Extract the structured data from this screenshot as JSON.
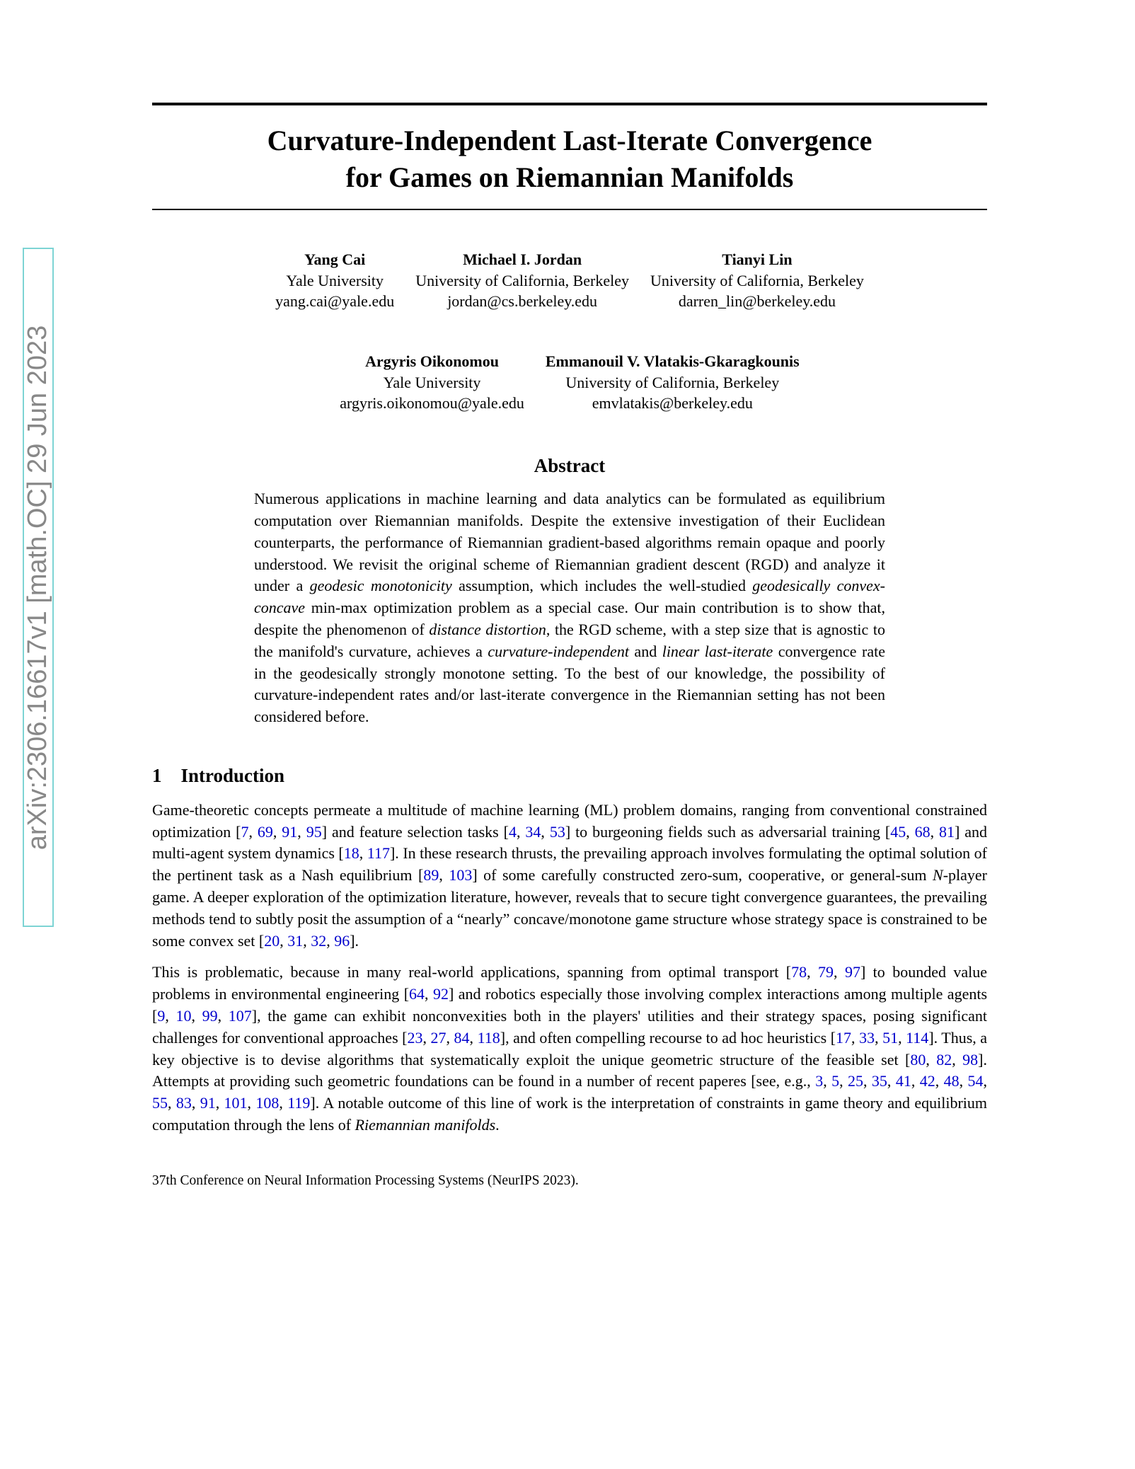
{
  "arxiv_id": "arXiv:2306.16617v1  [math.OC]  29 Jun 2023",
  "title_line1": "Curvature-Independent Last-Iterate Convergence",
  "title_line2": "for Games on Riemannian Manifolds",
  "authors_row1": [
    {
      "name": "Yang Cai",
      "affiliation": "Yale University",
      "email": "yang.cai@yale.edu"
    },
    {
      "name": "Michael I. Jordan",
      "affiliation": "University of California, Berkeley",
      "email": "jordan@cs.berkeley.edu"
    },
    {
      "name": "Tianyi Lin",
      "affiliation": "University of California, Berkeley",
      "email": "darren_lin@berkeley.edu"
    }
  ],
  "authors_row2": [
    {
      "name": "Argyris Oikonomou",
      "affiliation": "Yale University",
      "email": "argyris.oikonomou@yale.edu"
    },
    {
      "name": "Emmanouil V. Vlatakis-Gkaragkounis",
      "affiliation": "University of California, Berkeley",
      "email": "emvlatakis@berkeley.edu"
    }
  ],
  "abstract_heading": "Abstract",
  "abstract_text": "Numerous applications in machine learning and data analytics can be formulated as equilibrium computation over Riemannian manifolds. Despite the extensive investigation of their Euclidean counterparts, the performance of Riemannian gradient-based algorithms remain opaque and poorly understood. We revisit the original scheme of Riemannian gradient descent (RGD) and analyze it under a <em>geodesic monotonicity</em> assumption, which includes the well-studied <em>geodesically convex-concave</em> min-max optimization problem as a special case. Our main contribution is to show that, despite the phenomenon of <em>distance distortion</em>, the RGD scheme, with a step size that is agnostic to the manifold's curvature, achieves a <em>curvature-independent</em> and <em>linear last-iterate</em> convergence rate in the geodesically strongly monotone setting. To the best of our knowledge, the possibility of curvature-independent rates and/or last-iterate convergence in the Riemannian setting has not been considered before.",
  "section1_heading": "1 Introduction",
  "para1": {
    "seg1": "Game-theoretic concepts permeate a multitude of machine learning (ML) problem domains, ranging from conventional constrained optimization [",
    "c1": "7",
    "c1b": "69",
    "c1c": "91",
    "c1d": "95",
    "seg2": "] and feature selection tasks [",
    "c2": "4",
    "c2b": "34",
    "c2c": "53",
    "seg3": "] to burgeoning fields such as adversarial training [",
    "c3": "45",
    "c3b": "68",
    "c3c": "81",
    "seg4": "] and multi-agent system dynamics [",
    "c4": "18",
    "c4b": "117",
    "seg5": "]. In these research thrusts, the prevailing approach involves formulating the optimal solution of the pertinent task as a Nash equilibrium [",
    "c5": "89",
    "c5b": "103",
    "seg6": "] of some carefully constructed zero-sum, cooperative, or general-sum <em>N</em>-player game. A deeper exploration of the optimization literature, however, reveals that to secure tight convergence guarantees, the prevailing methods tend to subtly posit the assumption of a “nearly” concave/monotone game structure whose strategy space is constrained to be some convex set [",
    "c6": "20",
    "c6b": "31",
    "c6c": "32",
    "c6d": "96",
    "seg7": "]."
  },
  "para2": {
    "seg1": "This is problematic, because in many real-world applications, spanning from optimal transport [",
    "c1": "78",
    "c1b": "79",
    "c1c": "97",
    "seg2": "] to bounded value problems in environmental engineering [",
    "c2": "64",
    "c2b": "92",
    "seg3": "] and robotics especially those involving complex interactions among multiple agents [",
    "c3": "9",
    "c3b": "10",
    "c3c": "99",
    "c3d": "107",
    "seg4": "], the game can exhibit nonconvexities both in the players' utilities and their strategy spaces, posing significant challenges for conventional approaches [",
    "c4": "23",
    "c4b": "27",
    "c4c": "84",
    "c4d": "118",
    "seg5": "], and often compelling recourse to ad hoc heuristics [",
    "c5": "17",
    "c5b": "33",
    "c5c": "51",
    "c5d": "114",
    "seg6": "]. Thus, a key objective is to devise algorithms that systematically exploit the unique geometric structure of the feasible set [",
    "c6": "80",
    "c6b": "82",
    "c6c": "98",
    "seg7": "]. Attempts at providing such geometric foundations can be found in a number of recent paperes [see, e.g., ",
    "c7": "3",
    "c7b": "5",
    "c7c": "25",
    "c7d": "35",
    "c7e": "41",
    "c7f": "42",
    "c7g": "48",
    "c7h": "54",
    "c7i": "55",
    "c7j": "83",
    "c7k": "91",
    "c7l": "101",
    "c7m": "108",
    "c7n": "119",
    "seg8": "]. A notable outcome of this line of work is the interpretation of constraints in game theory and equilibrium computation through the lens of <em>Riemannian manifolds</em>."
  },
  "footnote": "37th Conference on Neural Information Processing Systems (NeurIPS 2023)."
}
